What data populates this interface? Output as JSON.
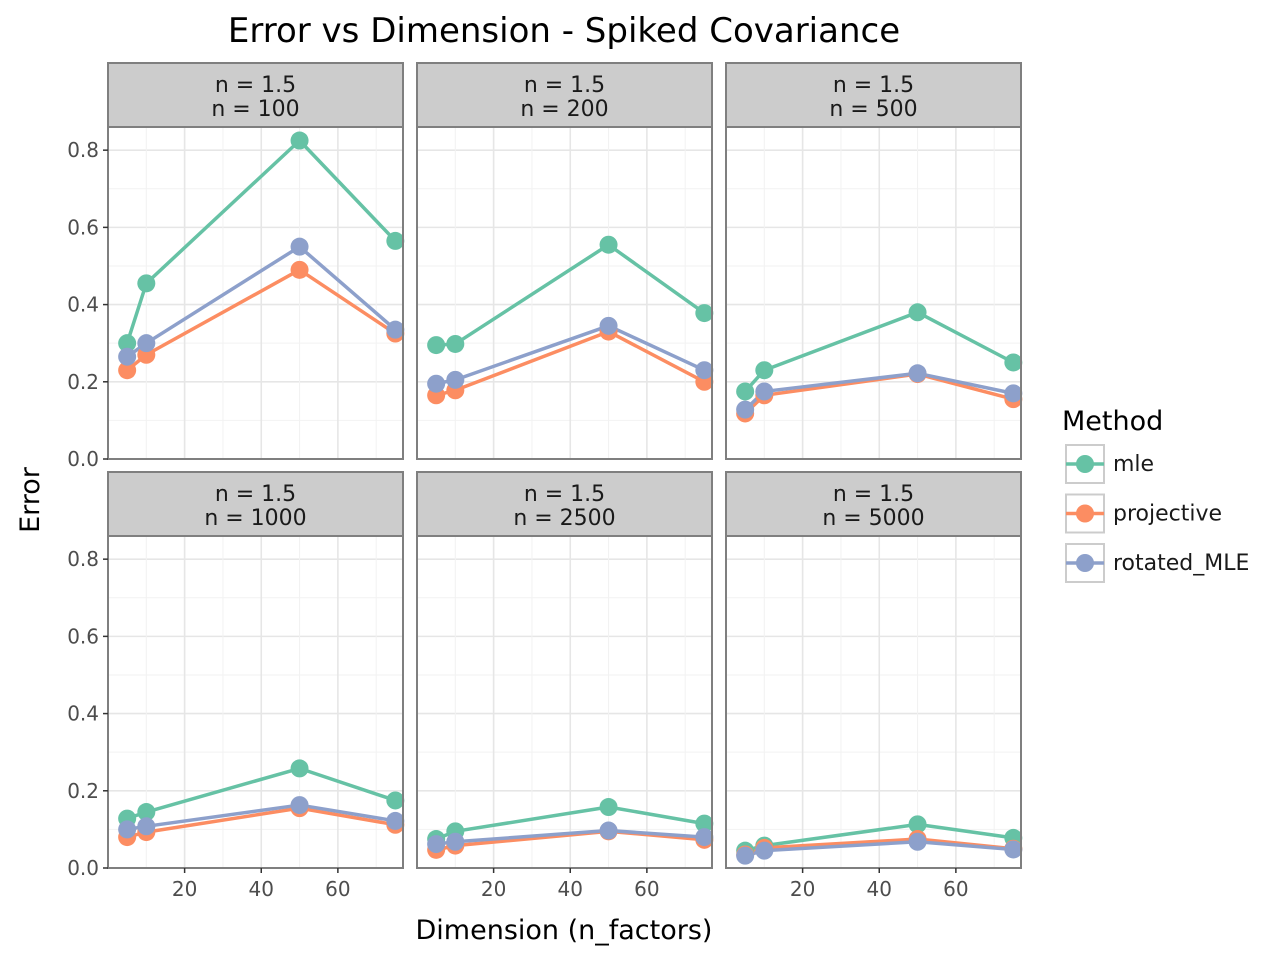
{
  "chart_data": {
    "type": "line",
    "title": "Error vs Dimension - Spiked Covariance",
    "xlabel": "Dimension (n_factors)",
    "ylabel": "Error",
    "x": [
      5,
      10,
      50,
      75
    ],
    "xlim": [
      0,
      77
    ],
    "ylim": [
      0,
      0.86
    ],
    "xticks": [
      "20",
      "40",
      "60"
    ],
    "yticks": [
      "0.0",
      "0.2",
      "0.4",
      "0.6",
      "0.8"
    ],
    "grid": true,
    "legend": {
      "title": "Method",
      "position": "right",
      "entries": [
        "mle",
        "projective",
        "rotated_MLE"
      ]
    },
    "colors": {
      "mle": "#66c2a5",
      "projective": "#fc8d62",
      "rotated_MLE": "#8da0cb"
    },
    "panels": [
      {
        "strip": [
          "n = 1.5",
          "n = 100"
        ],
        "series": [
          {
            "name": "mle",
            "values": [
              0.3,
              0.455,
              0.825,
              0.565
            ]
          },
          {
            "name": "projective",
            "values": [
              0.23,
              0.27,
              0.49,
              0.325
            ]
          },
          {
            "name": "rotated_MLE",
            "values": [
              0.265,
              0.3,
              0.55,
              0.335
            ]
          }
        ]
      },
      {
        "strip": [
          "n = 1.5",
          "n = 200"
        ],
        "series": [
          {
            "name": "mle",
            "values": [
              0.295,
              0.298,
              0.555,
              0.378
            ]
          },
          {
            "name": "projective",
            "values": [
              0.165,
              0.178,
              0.33,
              0.2
            ]
          },
          {
            "name": "rotated_MLE",
            "values": [
              0.195,
              0.205,
              0.345,
              0.23
            ]
          }
        ]
      },
      {
        "strip": [
          "n = 1.5",
          "n = 500"
        ],
        "series": [
          {
            "name": "mle",
            "values": [
              0.175,
              0.23,
              0.38,
              0.25
            ]
          },
          {
            "name": "projective",
            "values": [
              0.118,
              0.165,
              0.22,
              0.155
            ]
          },
          {
            "name": "rotated_MLE",
            "values": [
              0.128,
              0.175,
              0.222,
              0.17
            ]
          }
        ]
      },
      {
        "strip": [
          "n = 1.5",
          "n = 1000"
        ],
        "series": [
          {
            "name": "mle",
            "values": [
              0.128,
              0.145,
              0.258,
              0.175
            ]
          },
          {
            "name": "projective",
            "values": [
              0.08,
              0.093,
              0.155,
              0.112
            ]
          },
          {
            "name": "rotated_MLE",
            "values": [
              0.1,
              0.108,
              0.163,
              0.122
            ]
          }
        ]
      },
      {
        "strip": [
          "n = 1.5",
          "n = 2500"
        ],
        "series": [
          {
            "name": "mle",
            "values": [
              0.075,
              0.095,
              0.158,
              0.115
            ]
          },
          {
            "name": "projective",
            "values": [
              0.047,
              0.058,
              0.095,
              0.073
            ]
          },
          {
            "name": "rotated_MLE",
            "values": [
              0.062,
              0.068,
              0.097,
              0.08
            ]
          }
        ]
      },
      {
        "strip": [
          "n = 1.5",
          "n = 5000"
        ],
        "series": [
          {
            "name": "mle",
            "values": [
              0.045,
              0.058,
              0.113,
              0.078
            ]
          },
          {
            "name": "projective",
            "values": [
              0.035,
              0.052,
              0.075,
              0.05
            ]
          },
          {
            "name": "rotated_MLE",
            "values": [
              0.032,
              0.045,
              0.068,
              0.048
            ]
          }
        ]
      }
    ]
  }
}
